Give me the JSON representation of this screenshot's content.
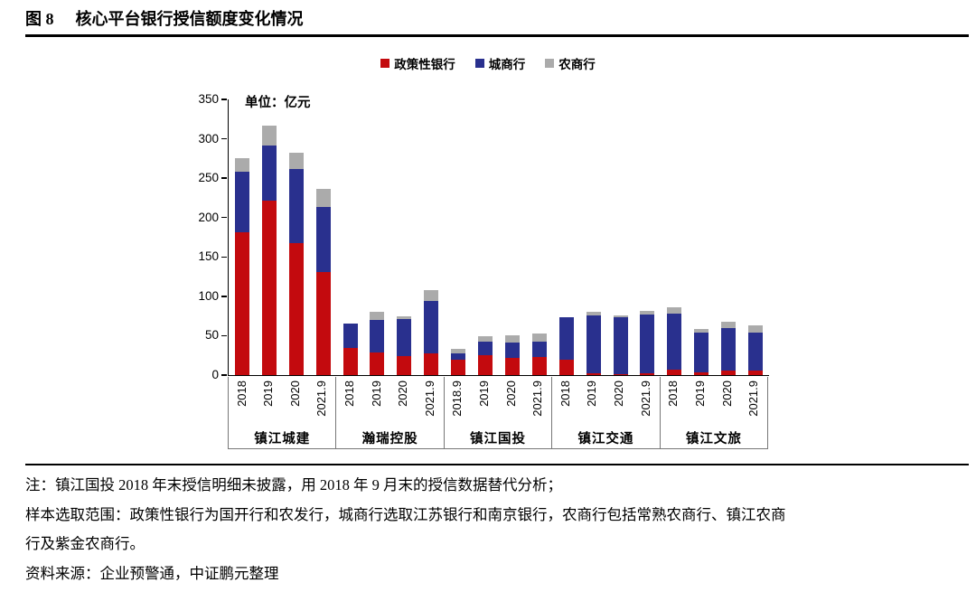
{
  "figure": {
    "label": "图 8",
    "title": "核心平台银行授信额度变化情况"
  },
  "chart_data": {
    "type": "bar",
    "stacked": true,
    "unit_label": "单位：亿元",
    "ylim": [
      0,
      350
    ],
    "yticks": [
      350,
      300,
      250,
      200,
      150,
      100,
      50,
      0
    ],
    "legend_position": "top",
    "grid": false,
    "series": [
      "政策性银行",
      "城商行",
      "农商行"
    ],
    "series_colors": [
      "#C30A0E",
      "#29308E",
      "#ABABAB"
    ],
    "groups": [
      {
        "name": "镇江城建",
        "bars": [
          {
            "year": "2018",
            "values": [
              181,
              77,
              17
            ]
          },
          {
            "year": "2019",
            "values": [
              222,
              69,
              26
            ]
          },
          {
            "year": "2020",
            "values": [
              168,
              94,
              20
            ]
          },
          {
            "year": "2021.9",
            "values": [
              131,
              83,
              22
            ]
          }
        ]
      },
      {
        "name": "瀚瑞控股",
        "bars": [
          {
            "year": "2018",
            "values": [
              35,
              31,
              0
            ]
          },
          {
            "year": "2019",
            "values": [
              29,
              41,
              10
            ]
          },
          {
            "year": "2020",
            "values": [
              24,
              47,
              4
            ]
          },
          {
            "year": "2021.9",
            "values": [
              27,
              67,
              14
            ]
          }
        ]
      },
      {
        "name": "镇江国投",
        "bars": [
          {
            "year": "2018.9",
            "values": [
              19,
              9,
              5
            ]
          },
          {
            "year": "2019",
            "values": [
              25,
              18,
              6
            ]
          },
          {
            "year": "2020",
            "values": [
              22,
              19,
              9
            ]
          },
          {
            "year": "2021.9",
            "values": [
              23,
              20,
              10
            ]
          }
        ]
      },
      {
        "name": "镇江交通",
        "bars": [
          {
            "year": "2018",
            "values": [
              19,
              55,
              0
            ]
          },
          {
            "year": "2019",
            "values": [
              2,
              74,
              4
            ]
          },
          {
            "year": "2020",
            "values": [
              1,
              72,
              3
            ]
          },
          {
            "year": "2021.9",
            "values": [
              2,
              75,
              5
            ]
          }
        ]
      },
      {
        "name": "镇江文旅",
        "bars": [
          {
            "year": "2018",
            "values": [
              7,
              71,
              8
            ]
          },
          {
            "year": "2019",
            "values": [
              4,
              50,
              5
            ]
          },
          {
            "year": "2020",
            "values": [
              6,
              54,
              8
            ]
          },
          {
            "year": "2021.9",
            "values": [
              6,
              48,
              9
            ]
          }
        ]
      }
    ]
  },
  "notes": [
    "注：镇江国投 2018 年末授信明细未披露，用 2018 年 9 月末的授信数据替代分析；",
    "样本选取范围：政策性银行为国开行和农发行，城商行选取江苏银行和南京银行，农商行包括常熟农商行、镇江农商",
    "行及紫金农商行。",
    "资料来源：企业预警通，中证鹏元整理"
  ],
  "colors": {
    "policy_bank_red": "#C30A0E",
    "city_bank_blue": "#29308E",
    "rural_bank_gray": "#ABABAB",
    "rule_black": "#000000",
    "table_line_gray": "#777777"
  }
}
